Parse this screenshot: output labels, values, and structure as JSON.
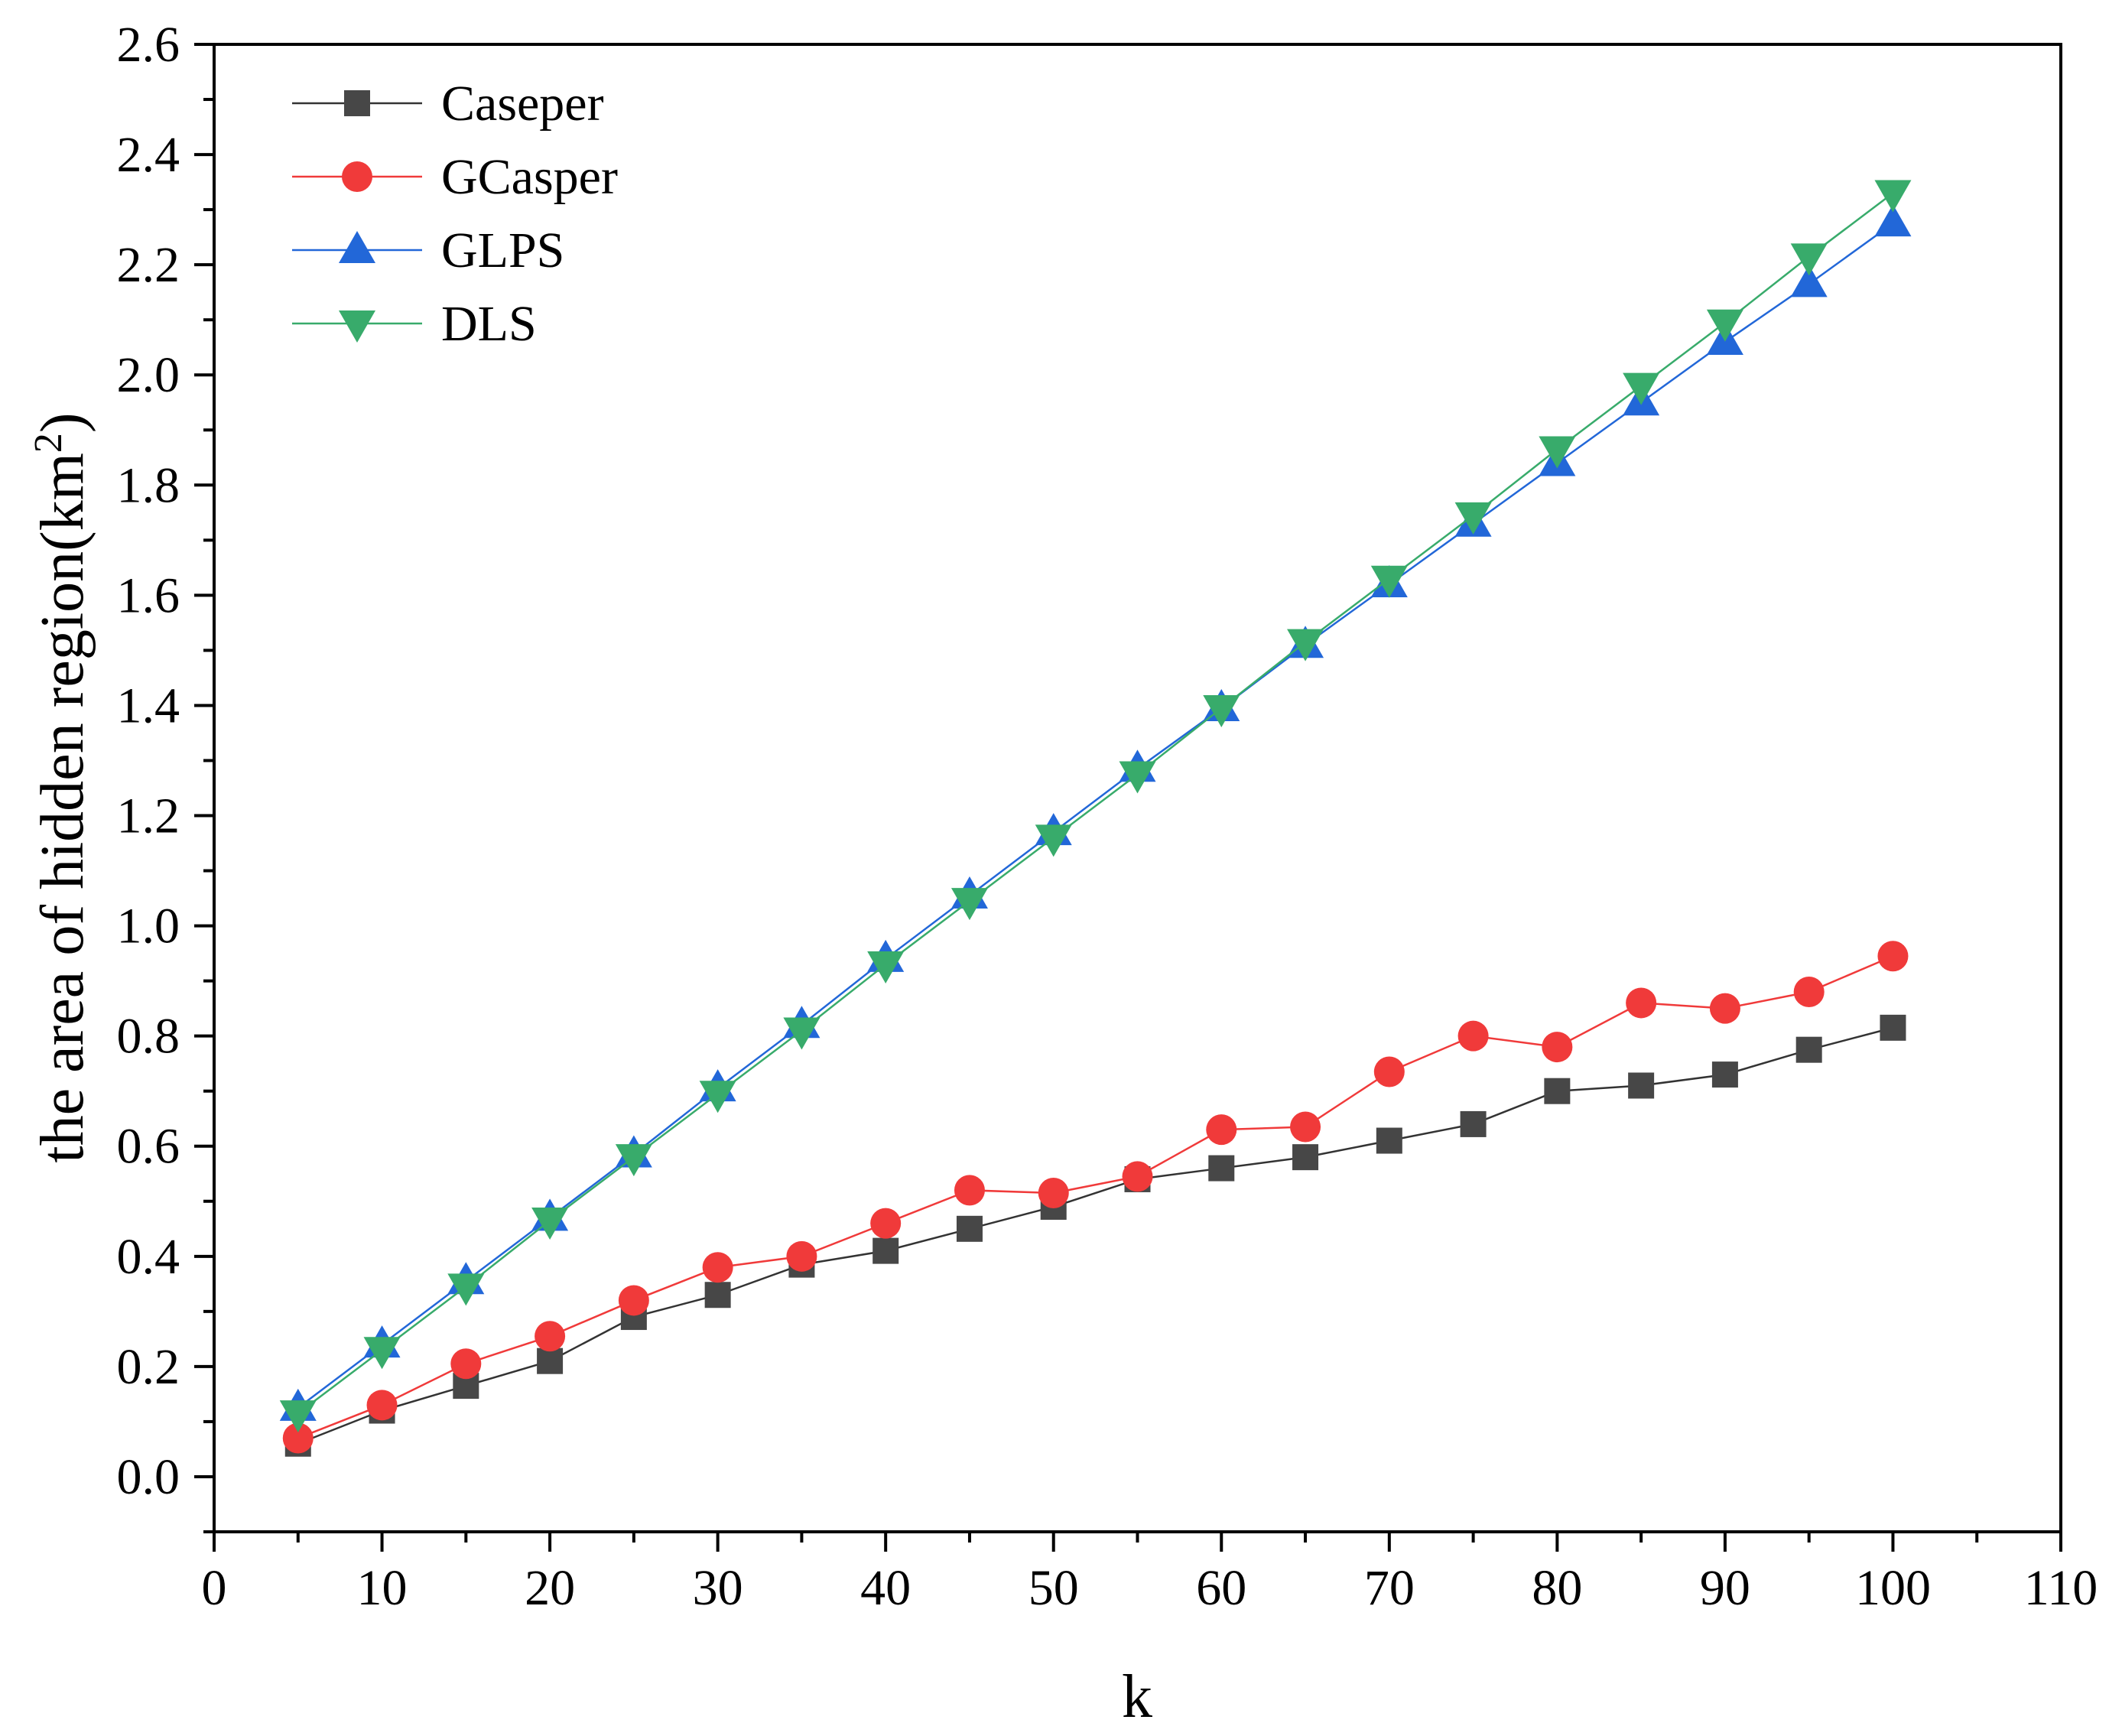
{
  "chart_data": {
    "type": "line",
    "title": "",
    "xlabel": "k",
    "ylabel_main": "the area of hidden region(km",
    "ylabel_sup": "2",
    "ylabel_close": ")",
    "xlim": [
      0,
      110
    ],
    "ylim": [
      -0.1,
      2.6
    ],
    "x_ticks": [
      0,
      10,
      20,
      30,
      40,
      50,
      60,
      70,
      80,
      90,
      100,
      110
    ],
    "y_ticks": [
      0.0,
      0.2,
      0.4,
      0.6,
      0.8,
      1.0,
      1.2,
      1.4,
      1.6,
      1.8,
      2.0,
      2.2,
      2.4,
      2.6
    ],
    "x_tick_labels": [
      "0",
      "10",
      "20",
      "30",
      "40",
      "50",
      "60",
      "70",
      "80",
      "90",
      "100",
      "110"
    ],
    "y_tick_labels": [
      "0.0",
      "0.2",
      "0.4",
      "0.6",
      "0.8",
      "1.0",
      "1.2",
      "1.4",
      "1.6",
      "1.8",
      "2.0",
      "2.2",
      "2.4",
      "2.6"
    ],
    "grid": false,
    "legend_position": "top-left",
    "x": [
      5,
      10,
      15,
      20,
      25,
      30,
      35,
      40,
      45,
      50,
      55,
      60,
      65,
      70,
      75,
      80,
      85,
      90,
      95,
      100
    ],
    "series": [
      {
        "name": "Caseper",
        "color": "#474747",
        "line_color": "#333333",
        "marker": "square",
        "values": [
          0.06,
          0.12,
          0.165,
          0.21,
          0.29,
          0.33,
          0.385,
          0.41,
          0.45,
          0.49,
          0.54,
          0.56,
          0.58,
          0.61,
          0.64,
          0.7,
          0.71,
          0.73,
          0.775,
          0.815
        ]
      },
      {
        "name": "GCasper",
        "color": "#f03a3a",
        "line_color": "#f03a3a",
        "marker": "circle",
        "values": [
          0.07,
          0.13,
          0.205,
          0.255,
          0.32,
          0.38,
          0.4,
          0.46,
          0.52,
          0.515,
          0.545,
          0.63,
          0.635,
          0.735,
          0.8,
          0.78,
          0.86,
          0.85,
          0.88,
          0.945
        ]
      },
      {
        "name": "GLPS",
        "color": "#2267d8",
        "line_color": "#2267d8",
        "marker": "triangle-up",
        "values": [
          0.125,
          0.24,
          0.355,
          0.47,
          0.585,
          0.705,
          0.82,
          0.94,
          1.055,
          1.17,
          1.285,
          1.395,
          1.51,
          1.62,
          1.73,
          1.84,
          1.95,
          2.06,
          2.165,
          2.275
        ]
      },
      {
        "name": "DLS",
        "color": "#38ab6b",
        "line_color": "#38ab6b",
        "marker": "triangle-down",
        "values": [
          0.115,
          0.23,
          0.345,
          0.465,
          0.58,
          0.695,
          0.81,
          0.93,
          1.045,
          1.16,
          1.275,
          1.395,
          1.515,
          1.63,
          1.745,
          1.865,
          1.98,
          2.095,
          2.215,
          2.33
        ]
      }
    ]
  }
}
